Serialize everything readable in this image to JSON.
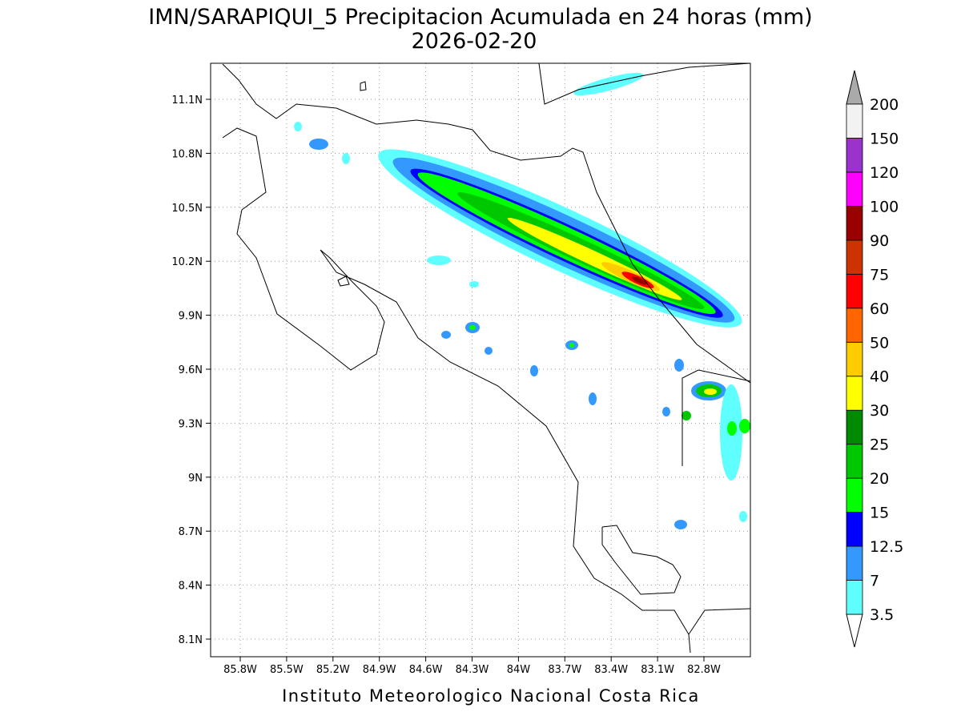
{
  "header": {
    "title": "IMN/SARAPIQUI_5 Precipitacion Acumulada en 24 horas (mm)",
    "date": "2026-02-20"
  },
  "map": {
    "lat_labels": [
      "11.1N",
      "10.8N",
      "10.5N",
      "10.2N",
      "9.9N",
      "9.6N",
      "9.3N",
      "9N",
      "8.7N",
      "8.4N",
      "8.1N"
    ],
    "lon_labels": [
      "85.8W",
      "85.5W",
      "85.2W",
      "84.9W",
      "84.6W",
      "84.3W",
      "84W",
      "83.7W",
      "83.4W",
      "83.1W",
      "82.8W"
    ]
  },
  "colorbar": {
    "labels": [
      "3.5",
      "7",
      "12.5",
      "15",
      "20",
      "25",
      "30",
      "40",
      "50",
      "60",
      "75",
      "90",
      "100",
      "120",
      "150",
      "200"
    ],
    "colors": [
      "#60ffff",
      "#3399ff",
      "#0000ff",
      "#00ff00",
      "#00c800",
      "#008a00",
      "#ffff00",
      "#ffcc00",
      "#ff6600",
      "#ff0000",
      "#cc3300",
      "#990000",
      "#ff00ff",
      "#9933cc",
      "#f2f2f2"
    ]
  },
  "footer": "Instituto Meteorologico Nacional Costa Rica"
}
